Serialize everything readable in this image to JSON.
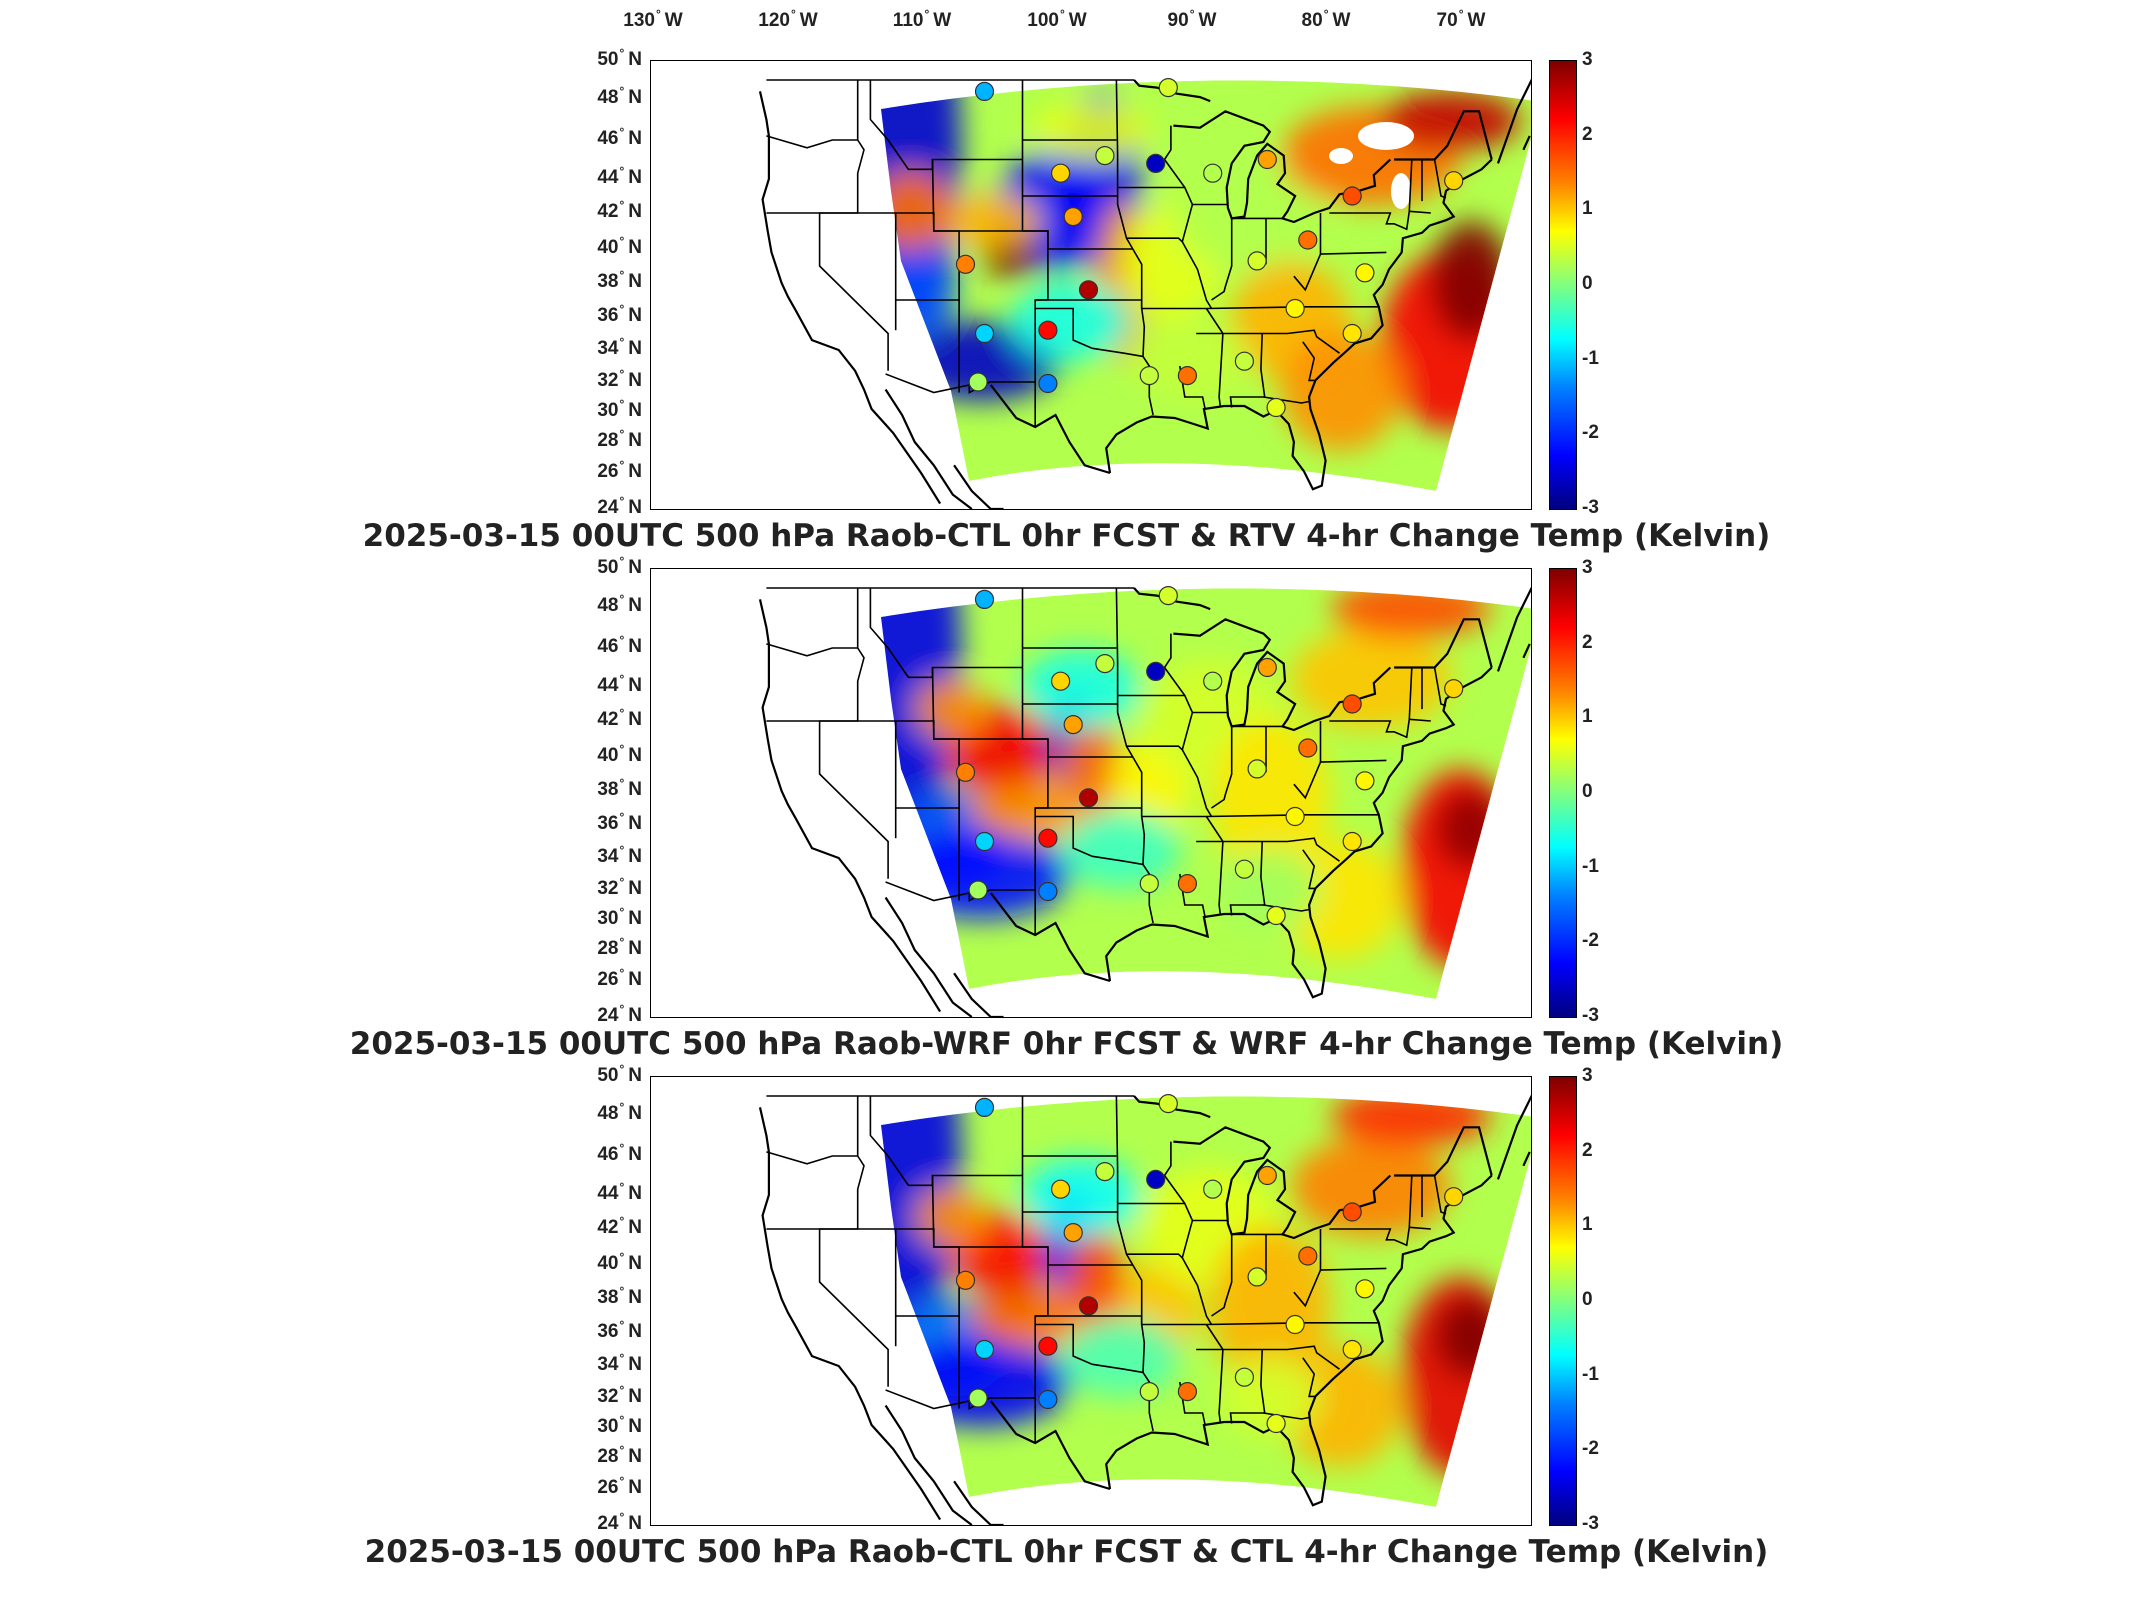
{
  "lon_axis": {
    "labels": [
      {
        "value": "130",
        "dir": "W"
      },
      {
        "value": "120",
        "dir": "W"
      },
      {
        "value": "110",
        "dir": "W"
      },
      {
        "value": "100",
        "dir": "W"
      },
      {
        "value": "90",
        "dir": "W"
      },
      {
        "value": "80",
        "dir": "W"
      },
      {
        "value": "70",
        "dir": "W"
      }
    ],
    "degree_symbol": "°"
  },
  "lat_axis": {
    "labels": [
      {
        "value": "50",
        "dir": "N"
      },
      {
        "value": "48",
        "dir": "N"
      },
      {
        "value": "46",
        "dir": "N"
      },
      {
        "value": "44",
        "dir": "N"
      },
      {
        "value": "42",
        "dir": "N"
      },
      {
        "value": "40",
        "dir": "N"
      },
      {
        "value": "38",
        "dir": "N"
      },
      {
        "value": "36",
        "dir": "N"
      },
      {
        "value": "34",
        "dir": "N"
      },
      {
        "value": "32",
        "dir": "N"
      },
      {
        "value": "30",
        "dir": "N"
      },
      {
        "value": "28",
        "dir": "N"
      },
      {
        "value": "26",
        "dir": "N"
      },
      {
        "value": "24",
        "dir": "N"
      }
    ]
  },
  "colorbar": {
    "ticks": [
      "3",
      "2",
      "1",
      "0",
      "-1",
      "-2",
      "-3"
    ],
    "range": [
      -3,
      3
    ],
    "colormap": "jet",
    "colors": [
      "#00007f",
      "#0000ff",
      "#00ffff",
      "#ffff00",
      "#ff0000",
      "#7f0000"
    ]
  },
  "panels": [
    {
      "title": "2025-03-15 00UTC 500 hPa Raob-CTL 0hr FCST & RTV 4-hr Change Temp (Kelvin)",
      "variant": "rtv",
      "stations": [
        {
          "lon": -107,
          "lat": 48.4,
          "value": -1.2
        },
        {
          "lon": -101,
          "lat": 44.3,
          "value": 1.0
        },
        {
          "lon": -97.5,
          "lat": 45.2,
          "value": 0.4
        },
        {
          "lon": -93.5,
          "lat": 44.8,
          "value": -2.6
        },
        {
          "lon": -92.5,
          "lat": 48.6,
          "value": 0.5
        },
        {
          "lon": -89,
          "lat": 44.3,
          "value": 0.3
        },
        {
          "lon": -84.7,
          "lat": 45.0,
          "value": 1.3
        },
        {
          "lon": -100,
          "lat": 41.8,
          "value": 1.3
        },
        {
          "lon": -108.5,
          "lat": 39.1,
          "value": 1.5
        },
        {
          "lon": -98.8,
          "lat": 37.6,
          "value": 2.7
        },
        {
          "lon": -102,
          "lat": 35.2,
          "value": 2.2
        },
        {
          "lon": -107,
          "lat": 35.0,
          "value": -1.0
        },
        {
          "lon": -102,
          "lat": 31.9,
          "value": -1.5
        },
        {
          "lon": -107.5,
          "lat": 32.0,
          "value": 0.2
        },
        {
          "lon": -94,
          "lat": 32.4,
          "value": 0.4
        },
        {
          "lon": -91,
          "lat": 32.4,
          "value": 1.6
        },
        {
          "lon": -86.5,
          "lat": 33.3,
          "value": 0.4
        },
        {
          "lon": -85.5,
          "lat": 39.3,
          "value": 0.5
        },
        {
          "lon": -81.5,
          "lat": 40.5,
          "value": 1.6
        },
        {
          "lon": -78,
          "lat": 43.0,
          "value": 1.8
        },
        {
          "lon": -77,
          "lat": 38.6,
          "value": 0.8
        },
        {
          "lon": -78,
          "lat": 35.0,
          "value": 0.9
        },
        {
          "lon": -84,
          "lat": 30.3,
          "value": 0.6
        },
        {
          "lon": -70,
          "lat": 43.9,
          "value": 1.0
        },
        {
          "lon": -82.5,
          "lat": 36.5,
          "value": 0.8
        }
      ]
    },
    {
      "title": "2025-03-15 00UTC 500 hPa Raob-WRF 0hr FCST & WRF 4-hr Change Temp (Kelvin)",
      "variant": "wrf",
      "stations": [
        {
          "lon": -107,
          "lat": 48.4,
          "value": -1.2
        },
        {
          "lon": -101,
          "lat": 44.3,
          "value": 1.0
        },
        {
          "lon": -97.5,
          "lat": 45.2,
          "value": 0.4
        },
        {
          "lon": -93.5,
          "lat": 44.8,
          "value": -2.6
        },
        {
          "lon": -92.5,
          "lat": 48.6,
          "value": 0.5
        },
        {
          "lon": -89,
          "lat": 44.3,
          "value": 0.3
        },
        {
          "lon": -84.7,
          "lat": 45.0,
          "value": 1.3
        },
        {
          "lon": -100,
          "lat": 41.8,
          "value": 1.3
        },
        {
          "lon": -108.5,
          "lat": 39.1,
          "value": 1.5
        },
        {
          "lon": -98.8,
          "lat": 37.6,
          "value": 2.7
        },
        {
          "lon": -102,
          "lat": 35.2,
          "value": 2.2
        },
        {
          "lon": -107,
          "lat": 35.0,
          "value": -1.0
        },
        {
          "lon": -102,
          "lat": 31.9,
          "value": -1.5
        },
        {
          "lon": -107.5,
          "lat": 32.0,
          "value": 0.2
        },
        {
          "lon": -94,
          "lat": 32.4,
          "value": 0.4
        },
        {
          "lon": -91,
          "lat": 32.4,
          "value": 1.6
        },
        {
          "lon": -86.5,
          "lat": 33.3,
          "value": 0.4
        },
        {
          "lon": -85.5,
          "lat": 39.3,
          "value": 0.5
        },
        {
          "lon": -81.5,
          "lat": 40.5,
          "value": 1.6
        },
        {
          "lon": -78,
          "lat": 43.0,
          "value": 1.8
        },
        {
          "lon": -77,
          "lat": 38.6,
          "value": 0.8
        },
        {
          "lon": -78,
          "lat": 35.0,
          "value": 0.9
        },
        {
          "lon": -84,
          "lat": 30.3,
          "value": 0.6
        },
        {
          "lon": -70,
          "lat": 43.9,
          "value": 1.0
        },
        {
          "lon": -82.5,
          "lat": 36.5,
          "value": 0.8
        }
      ]
    },
    {
      "title": "2025-03-15 00UTC 500 hPa Raob-CTL 0hr FCST & CTL 4-hr Change Temp (Kelvin)",
      "variant": "ctl",
      "stations": [
        {
          "lon": -107,
          "lat": 48.4,
          "value": -1.2
        },
        {
          "lon": -101,
          "lat": 44.3,
          "value": 1.0
        },
        {
          "lon": -97.5,
          "lat": 45.2,
          "value": 0.4
        },
        {
          "lon": -93.5,
          "lat": 44.8,
          "value": -2.6
        },
        {
          "lon": -92.5,
          "lat": 48.6,
          "value": 0.5
        },
        {
          "lon": -89,
          "lat": 44.3,
          "value": 0.3
        },
        {
          "lon": -84.7,
          "lat": 45.0,
          "value": 1.3
        },
        {
          "lon": -100,
          "lat": 41.8,
          "value": 1.3
        },
        {
          "lon": -108.5,
          "lat": 39.1,
          "value": 1.5
        },
        {
          "lon": -98.8,
          "lat": 37.6,
          "value": 2.7
        },
        {
          "lon": -102,
          "lat": 35.2,
          "value": 2.2
        },
        {
          "lon": -107,
          "lat": 35.0,
          "value": -1.0
        },
        {
          "lon": -102,
          "lat": 31.9,
          "value": -1.5
        },
        {
          "lon": -107.5,
          "lat": 32.0,
          "value": 0.2
        },
        {
          "lon": -94,
          "lat": 32.4,
          "value": 0.4
        },
        {
          "lon": -91,
          "lat": 32.4,
          "value": 1.6
        },
        {
          "lon": -86.5,
          "lat": 33.3,
          "value": 0.4
        },
        {
          "lon": -85.5,
          "lat": 39.3,
          "value": 0.5
        },
        {
          "lon": -81.5,
          "lat": 40.5,
          "value": 1.6
        },
        {
          "lon": -78,
          "lat": 43.0,
          "value": 1.8
        },
        {
          "lon": -77,
          "lat": 38.6,
          "value": 0.8
        },
        {
          "lon": -78,
          "lat": 35.0,
          "value": 0.9
        },
        {
          "lon": -84,
          "lat": 30.3,
          "value": 0.6
        },
        {
          "lon": -70,
          "lat": 43.9,
          "value": 1.0
        },
        {
          "lon": -82.5,
          "lat": 36.5,
          "value": 0.8
        }
      ]
    }
  ]
}
